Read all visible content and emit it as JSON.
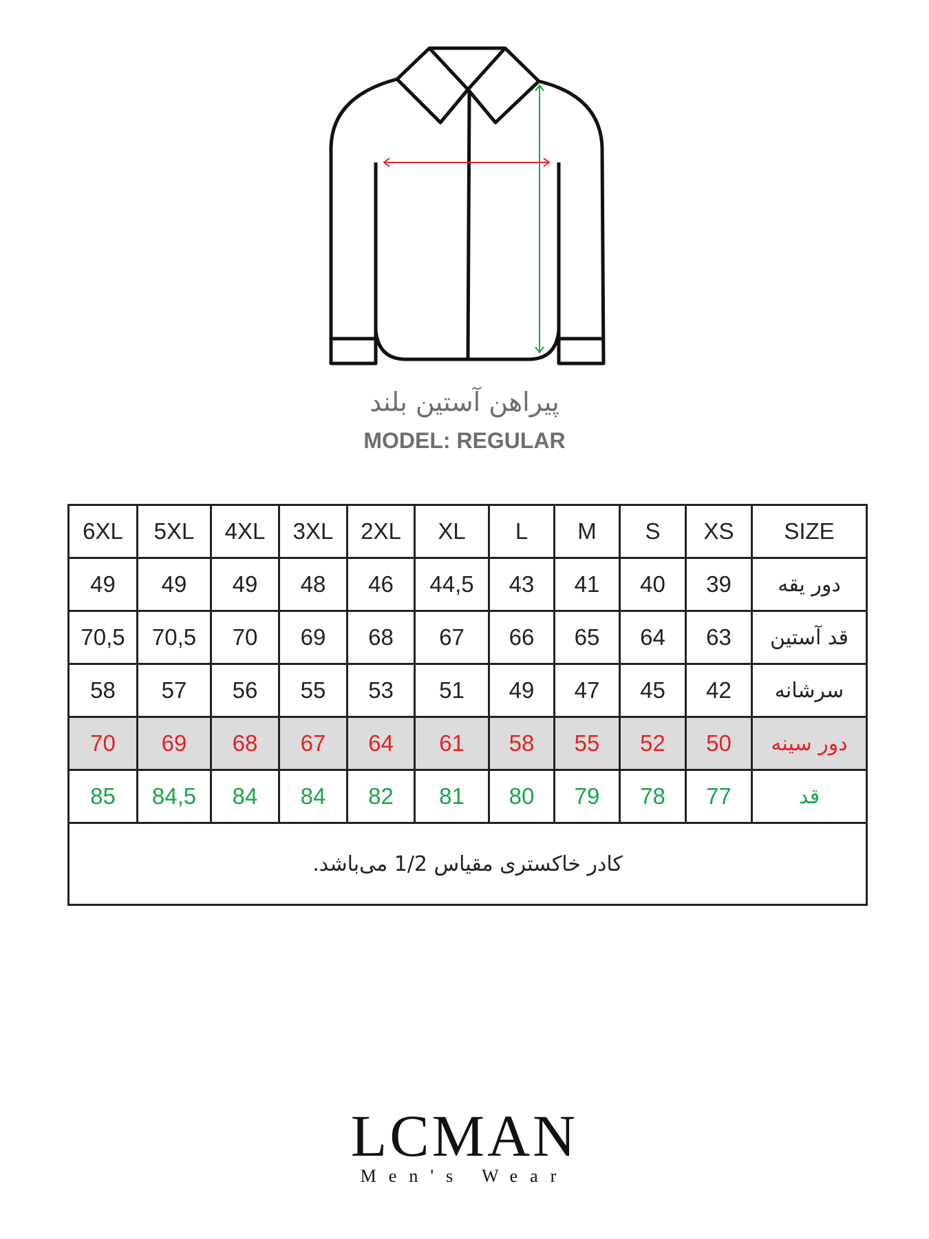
{
  "product": {
    "title": "پیراهن آستین بلند",
    "model": "MODEL: REGULAR"
  },
  "colors": {
    "chest_measure": "#e3222a",
    "length_measure": "#1aa34a",
    "highlight_row": "#dcdcdc"
  },
  "size_table": {
    "header": [
      "SIZE",
      "XS",
      "S",
      "M",
      "L",
      "XL",
      "2XL",
      "3XL",
      "4XL",
      "5XL",
      "6XL"
    ],
    "rows": [
      {
        "label": "دور یقه",
        "values": [
          "39",
          "40",
          "41",
          "43",
          "44,5",
          "46",
          "48",
          "49",
          "49",
          "49"
        ]
      },
      {
        "label": "قد آستین",
        "values": [
          "63",
          "64",
          "65",
          "66",
          "67",
          "68",
          "69",
          "70",
          "70,5",
          "70,5"
        ]
      },
      {
        "label": "سرشانه",
        "values": [
          "42",
          "45",
          "47",
          "49",
          "51",
          "53",
          "55",
          "56",
          "57",
          "58"
        ]
      },
      {
        "label": "دور سینه",
        "values": [
          "50",
          "52",
          "55",
          "58",
          "61",
          "64",
          "67",
          "68",
          "69",
          "70"
        ]
      },
      {
        "label": "قد",
        "values": [
          "77",
          "78",
          "79",
          "80",
          "81",
          "82",
          "84",
          "84",
          "84,5",
          "85"
        ]
      }
    ],
    "note": "کادر خاکستری مقیاس 1/2 می‌باشد."
  },
  "brand": {
    "name": "LCMAN",
    "tagline": "Men's Wear"
  }
}
